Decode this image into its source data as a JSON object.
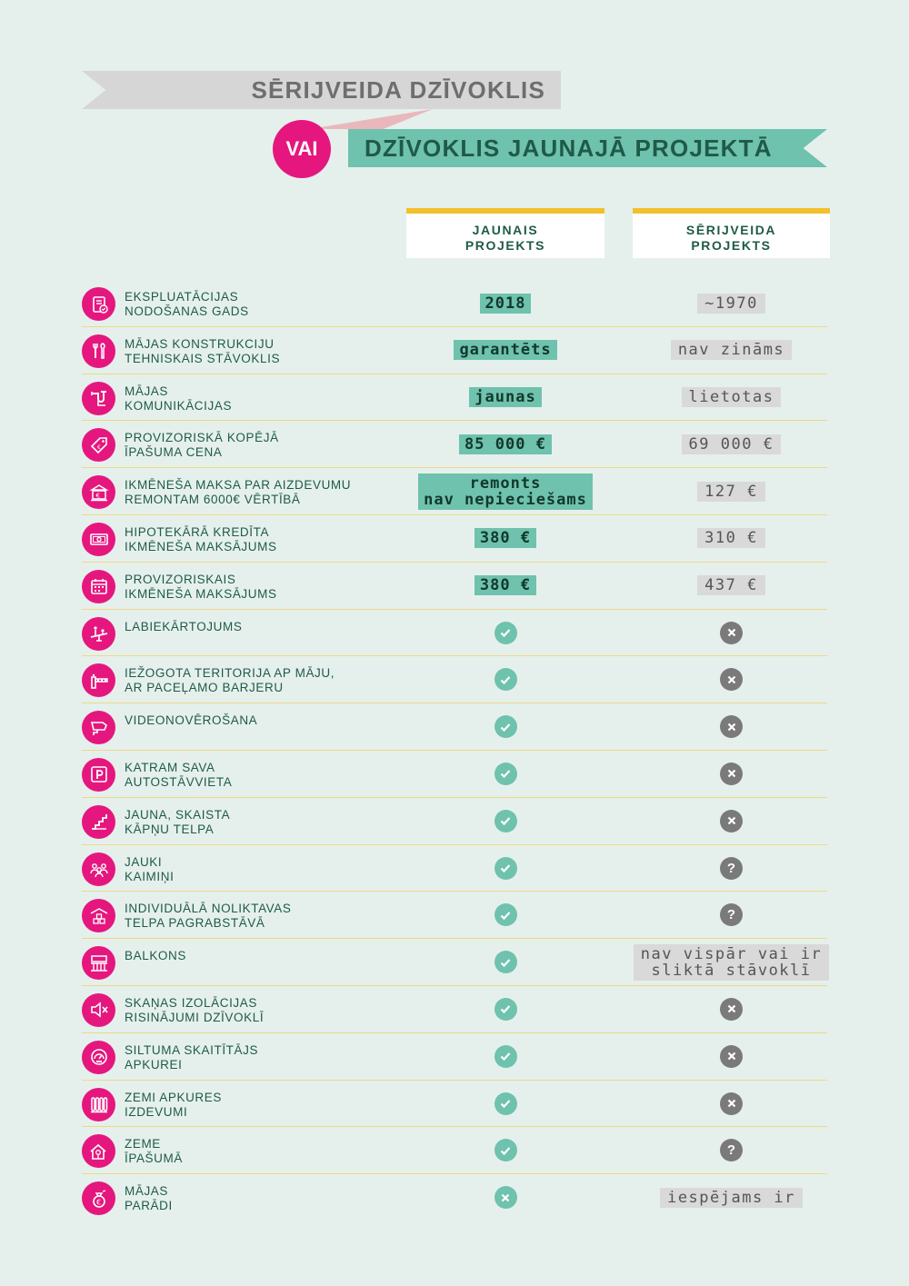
{
  "title": {
    "option_a": "SĒRIJVEIDA DZĪVOKLIS",
    "connector": "VAI",
    "option_b": "DZĪVOKLIS JAUNAJĀ PROJEKTĀ"
  },
  "columns": {
    "new": [
      "JAUNAIS",
      "PROJEKTS"
    ],
    "old": [
      "SĒRIJVEIDA",
      "PROJEKTS"
    ]
  },
  "colors": {
    "background": "#e5f0ec",
    "accent_pink": "#e5177e",
    "accent_teal": "#6fc2ad",
    "accent_yellow": "#f3c02c",
    "neutral_gray": "#d9d9d9",
    "text_dark_green": "#1f5a48"
  },
  "rows": [
    {
      "icon": "document-check-icon",
      "label": [
        "EKSPLUATĀCIJAS",
        "NODOŠANAS GADS"
      ],
      "new": {
        "type": "text",
        "lines": [
          "2018"
        ]
      },
      "old": {
        "type": "text",
        "lines": [
          "~1970"
        ]
      }
    },
    {
      "icon": "tools-icon",
      "label": [
        "MĀJAS KONSTRUKCIJU",
        "TEHNISKAIS STĀVOKLIS"
      ],
      "new": {
        "type": "text",
        "lines": [
          "garantēts"
        ]
      },
      "old": {
        "type": "text",
        "lines": [
          "nav zināms"
        ]
      }
    },
    {
      "icon": "pipes-icon",
      "label": [
        "MĀJAS",
        "KOMUNIKĀCIJAS"
      ],
      "new": {
        "type": "text",
        "lines": [
          "jaunas"
        ]
      },
      "old": {
        "type": "text",
        "lines": [
          "lietotas"
        ]
      }
    },
    {
      "icon": "price-tag-icon",
      "label": [
        "PROVIZORISKĀ KOPĒJĀ",
        "ĪPAŠUMA CENA"
      ],
      "new": {
        "type": "text",
        "lines": [
          "85 000 €"
        ]
      },
      "old": {
        "type": "text",
        "lines": [
          "69 000 €"
        ]
      }
    },
    {
      "icon": "bank-euro-icon",
      "label": [
        "IKMĒNEŠA MAKSA PAR AIZDEVUMU",
        "REMONTAM 6000€ VĒRTĪBĀ"
      ],
      "new": {
        "type": "text",
        "lines": [
          "remonts",
          "nav nepieciešams"
        ]
      },
      "old": {
        "type": "text",
        "lines": [
          "127 €"
        ]
      }
    },
    {
      "icon": "banknote-icon",
      "label": [
        "HIPOTEKĀRĀ KREDĪTA",
        "IKMĒNEŠA MAKSĀJUMS"
      ],
      "new": {
        "type": "text",
        "lines": [
          "380 €"
        ]
      },
      "old": {
        "type": "text",
        "lines": [
          "310 €"
        ]
      }
    },
    {
      "icon": "calendar-icon",
      "label": [
        "PROVIZORISKAIS",
        "IKMĒNEŠA MAKSĀJUMS"
      ],
      "new": {
        "type": "text",
        "lines": [
          "380 €"
        ]
      },
      "old": {
        "type": "text",
        "lines": [
          "437 €"
        ]
      }
    },
    {
      "icon": "playground-icon",
      "label": [
        "LABIEKĀRTOJUMS"
      ],
      "new": {
        "type": "check"
      },
      "old": {
        "type": "cross"
      }
    },
    {
      "icon": "barrier-icon",
      "label": [
        "IEŽOGOTA TERITORIJA AP MĀJU,",
        "AR PACEĻAMO BARJERU"
      ],
      "new": {
        "type": "check"
      },
      "old": {
        "type": "cross"
      }
    },
    {
      "icon": "camera-icon",
      "label": [
        "VIDEONOVĒROŠANA"
      ],
      "new": {
        "type": "check"
      },
      "old": {
        "type": "cross"
      }
    },
    {
      "icon": "parking-icon",
      "label": [
        "KATRAM SAVA",
        "AUTOSTĀVVIETA"
      ],
      "new": {
        "type": "check"
      },
      "old": {
        "type": "cross"
      }
    },
    {
      "icon": "stairs-icon",
      "label": [
        "JAUNA, SKAISTA",
        "KĀPŅU TELPA"
      ],
      "new": {
        "type": "check"
      },
      "old": {
        "type": "cross"
      }
    },
    {
      "icon": "neighbors-icon",
      "label": [
        "JAUKI",
        "KAIMIŅI"
      ],
      "new": {
        "type": "check"
      },
      "old": {
        "type": "question"
      }
    },
    {
      "icon": "storage-boxes-icon",
      "label": [
        "INDIVIDUĀLĀ NOLIKTAVAS",
        "TELPA PAGRABSTĀVĀ"
      ],
      "new": {
        "type": "check"
      },
      "old": {
        "type": "question"
      }
    },
    {
      "icon": "balcony-icon",
      "label": [
        "BALKONS"
      ],
      "new": {
        "type": "check"
      },
      "old": {
        "type": "text",
        "lines": [
          "nav vispār vai ir",
          "sliktā stāvoklī"
        ]
      }
    },
    {
      "icon": "speaker-mute-icon",
      "label": [
        "SKAŅAS IZOLĀCIJAS",
        "RISINĀJUMI DZĪVOKLĪ"
      ],
      "new": {
        "type": "check"
      },
      "old": {
        "type": "cross"
      }
    },
    {
      "icon": "heat-meter-icon",
      "label": [
        "SILTUMA SKAITĪTĀJS",
        "APKUREI"
      ],
      "new": {
        "type": "check"
      },
      "old": {
        "type": "cross"
      }
    },
    {
      "icon": "radiator-icon",
      "label": [
        "ZEMI APKURES",
        "IZDEVUMI"
      ],
      "new": {
        "type": "check"
      },
      "old": {
        "type": "cross"
      }
    },
    {
      "icon": "house-tree-icon",
      "label": [
        "ZEME",
        "ĪPAŠUMĀ"
      ],
      "new": {
        "type": "check"
      },
      "old": {
        "type": "question"
      }
    },
    {
      "icon": "money-bag-icon",
      "label": [
        "MĀJAS",
        "PARĀDI"
      ],
      "new": {
        "type": "cross-teal"
      },
      "old": {
        "type": "text",
        "lines": [
          "iespējams ir"
        ]
      }
    }
  ]
}
